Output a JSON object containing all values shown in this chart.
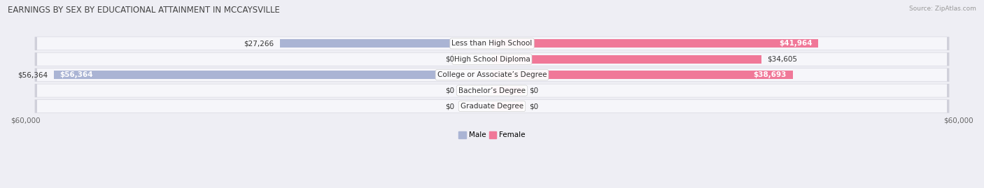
{
  "title": "EARNINGS BY SEX BY EDUCATIONAL ATTAINMENT IN MCCAYSVILLE",
  "source": "Source: ZipAtlas.com",
  "categories": [
    "Less than High School",
    "High School Diploma",
    "College or Associate’s Degree",
    "Bachelor’s Degree",
    "Graduate Degree"
  ],
  "male_values": [
    27266,
    0,
    56364,
    0,
    0
  ],
  "female_values": [
    41964,
    34605,
    38693,
    0,
    0
  ],
  "male_color": "#aab4d4",
  "female_color": "#f07898",
  "male_label": "Male",
  "female_label": "Female",
  "xlim": 60000,
  "bar_height": 0.52,
  "stub_value": 4000,
  "background_color": "#eeeef4",
  "row_bg_color": "#e2e2ea",
  "row_bg_light": "#f4f4f8",
  "title_fontsize": 8.5,
  "label_fontsize": 7.5,
  "tick_fontsize": 7.5,
  "source_fontsize": 6.5
}
